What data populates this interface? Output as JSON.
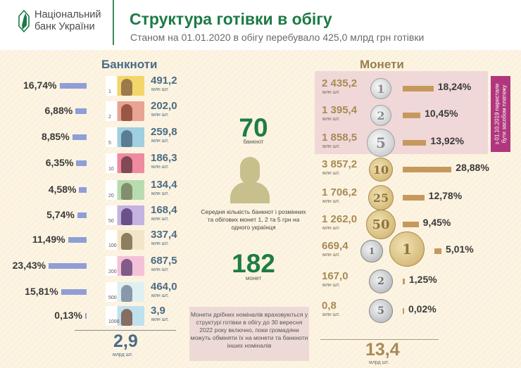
{
  "header": {
    "logo_line1": "Національний",
    "logo_line2": "банк України",
    "title": "Структура готівки в обігу",
    "subtitle": "Станом на 01.01.2020 в обігу перебувало 425,0  млрд  грн готівки"
  },
  "banknotes": {
    "title": "Банкноти",
    "unit": "млн шт.",
    "items": [
      {
        "denom": "1",
        "pct": "16,74%",
        "value": "491,2",
        "color": "#f3d56a",
        "head": "#8c6a47"
      },
      {
        "denom": "2",
        "pct": "6,88%",
        "value": "202,0",
        "color": "#e8a393",
        "head": "#8b4a35"
      },
      {
        "denom": "5",
        "pct": "8,85%",
        "value": "259,8",
        "color": "#9fcfe0",
        "head": "#4f6f86"
      },
      {
        "denom": "10",
        "pct": "6,35%",
        "value": "186,3",
        "color": "#f08aa0",
        "head": "#6d3c48"
      },
      {
        "denom": "20",
        "pct": "4,58%",
        "value": "134,4",
        "color": "#b8dcb0",
        "head": "#7a8060"
      },
      {
        "denom": "50",
        "pct": "5,74%",
        "value": "168,4",
        "color": "#c4b2e0",
        "head": "#5a3f78"
      },
      {
        "denom": "100",
        "pct": "11,49%",
        "value": "337,4",
        "color": "#f3e6c8",
        "head": "#7d6a4c"
      },
      {
        "denom": "200",
        "pct": "23,43%",
        "value": "687,5",
        "color": "#f4c2d8",
        "head": "#6d4a7a"
      },
      {
        "denom": "500",
        "pct": "15,81%",
        "value": "464,0",
        "color": "#dff0f0",
        "head": "#7a8aa0"
      },
      {
        "denom": "1000",
        "pct": "0,13%",
        "value": "3,9",
        "color": "#bfe0ee",
        "head": "#7a5a48"
      }
    ],
    "total": "2,9",
    "total_unit": "млрд шт."
  },
  "center": {
    "banknotes_count": "70",
    "banknotes_label": "банкнот",
    "description": "Середня кількість банкнот і  розмінних та обігових монет 1, 2 та 5 грн на одного українця",
    "coins_count": "182",
    "coins_label": "монет",
    "note": "Монети дрібних номіналів враховуються у структурі готівки в  обігу  до 30 вересня 2022 року включно, поки громадяни можуть обміняти їх  на монети та банкноти інших номіналів"
  },
  "coins": {
    "title": "Монети",
    "unit": "млн шт.",
    "side_note_line1": "з 01.10.2019 перестали",
    "side_note_line2": "бути засобом  платежу",
    "items": [
      {
        "denom": "1",
        "value": "2 435,2",
        "pct": "18,24%"
      },
      {
        "denom": "2",
        "value": "1 395,4",
        "pct": "10,45%"
      },
      {
        "denom": "5",
        "value": "1 858,5",
        "pct": "13,92%"
      },
      {
        "denom": "10",
        "value": "3 857,2",
        "pct": "28,88%"
      },
      {
        "denom": "25",
        "value": "1 706,2",
        "pct": "12,78%"
      },
      {
        "denom": "50",
        "value": "1 262,0",
        "pct": "9,45%"
      },
      {
        "denom": "1",
        "value": "669,4",
        "pct": "5,01%"
      },
      {
        "denom": "2",
        "value": "167,0",
        "pct": "1,25%"
      },
      {
        "denom": "5",
        "value": "0,8",
        "pct": "0,02%"
      }
    ],
    "total": "13,4",
    "total_unit": "млрд шт."
  },
  "chart_data": [
    {
      "type": "bar",
      "title": "Банкноти",
      "categories": [
        "1 грн",
        "2 грн",
        "5 грн",
        "10 грн",
        "20 грн",
        "50 грн",
        "100 грн",
        "200 грн",
        "500 грн",
        "1000 грн"
      ],
      "series": [
        {
          "name": "Частка, %",
          "values": [
            16.74,
            6.88,
            8.85,
            6.35,
            4.58,
            5.74,
            11.49,
            23.43,
            15.81,
            0.13
          ]
        },
        {
          "name": "Кількість, млн шт.",
          "values": [
            491.2,
            202.0,
            259.8,
            186.3,
            134.4,
            168.4,
            337.4,
            687.5,
            464.0,
            3.9
          ]
        }
      ],
      "total": "2,9 млрд шт.",
      "orientation": "horizontal",
      "color": "#8f9ed6"
    },
    {
      "type": "bar",
      "title": "Монети",
      "categories": [
        "1 коп",
        "2 коп",
        "5 коп",
        "10 коп",
        "25 коп",
        "50 коп",
        "1 грн",
        "2 грн",
        "5 грн"
      ],
      "series": [
        {
          "name": "Частка, %",
          "values": [
            18.24,
            10.45,
            13.92,
            28.88,
            12.78,
            9.45,
            5.01,
            1.25,
            0.02
          ]
        },
        {
          "name": "Кількість, млн шт.",
          "values": [
            2435.2,
            1395.4,
            1858.5,
            3857.2,
            1706.2,
            1262.0,
            669.4,
            167.0,
            0.8
          ]
        }
      ],
      "total": "13,4 млрд шт.",
      "orientation": "horizontal",
      "color": "#c5995c",
      "annotation": "з 01.10.2019 перестали бути засобом платежу (1, 2, 5 коп)"
    }
  ]
}
